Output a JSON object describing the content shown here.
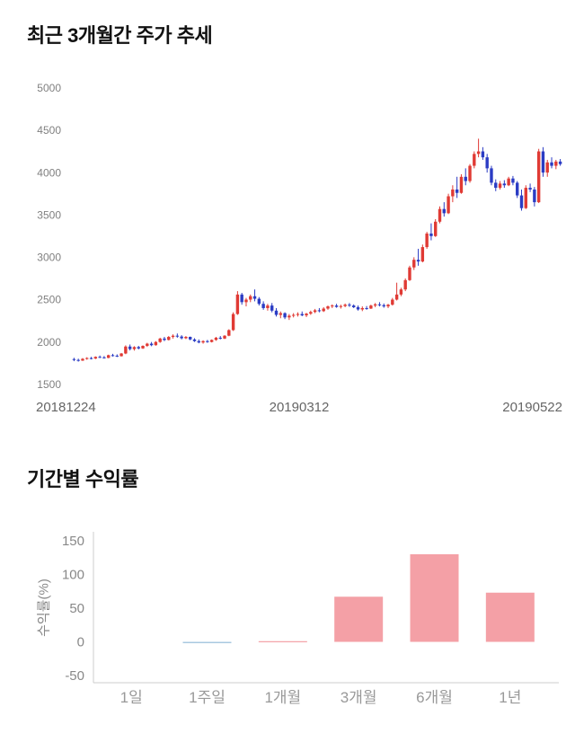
{
  "price_section": {
    "title": "최근 3개월간 주가 추세"
  },
  "returns_section": {
    "title": "기간별 수익률",
    "ylabel": "수익률(%)"
  },
  "chart_data": [
    {
      "type": "candlestick",
      "title": "최근 3개월간 주가 추세",
      "ylim": [
        1500,
        5000
      ],
      "yticks": [
        5000,
        4500,
        4000,
        3500,
        3000,
        2500,
        2000,
        1500
      ],
      "xticks": [
        "20181224",
        "20190312",
        "20190522"
      ],
      "up_color": "#e03a34",
      "down_color": "#2b3cc4",
      "ytick_text_color": "#808080",
      "xtick_text_color": "#666666",
      "candles": [
        [
          1800,
          1815,
          1775,
          1790
        ],
        [
          1790,
          1805,
          1770,
          1782
        ],
        [
          1782,
          1812,
          1778,
          1803
        ],
        [
          1803,
          1822,
          1792,
          1812
        ],
        [
          1812,
          1826,
          1796,
          1806
        ],
        [
          1806,
          1832,
          1800,
          1826
        ],
        [
          1826,
          1842,
          1812,
          1820
        ],
        [
          1820,
          1836,
          1806,
          1814
        ],
        [
          1814,
          1852,
          1810,
          1846
        ],
        [
          1846,
          1862,
          1830,
          1840
        ],
        [
          1840,
          1856,
          1824,
          1834
        ],
        [
          1834,
          1872,
          1830,
          1866
        ],
        [
          1866,
          1962,
          1858,
          1948
        ],
        [
          1948,
          1972,
          1902,
          1918
        ],
        [
          1918,
          1952,
          1900,
          1942
        ],
        [
          1942,
          1956,
          1914,
          1926
        ],
        [
          1926,
          1962,
          1920,
          1956
        ],
        [
          1956,
          1992,
          1944,
          1982
        ],
        [
          1982,
          2002,
          1952,
          1964
        ],
        [
          1964,
          2012,
          1958,
          2002
        ],
        [
          2002,
          2052,
          1992,
          2042
        ],
        [
          2042,
          2062,
          2012,
          2026
        ],
        [
          2026,
          2072,
          2020,
          2062
        ],
        [
          2062,
          2092,
          2042,
          2076
        ],
        [
          2076,
          2102,
          2052,
          2066
        ],
        [
          2066,
          2082,
          2032,
          2046
        ],
        [
          2046,
          2072,
          2036,
          2062
        ],
        [
          2062,
          2066,
          2022,
          2032
        ],
        [
          2032,
          2046,
          2002,
          2012
        ],
        [
          2012,
          2032,
          1986,
          1996
        ],
        [
          1996,
          2022,
          1982,
          2012
        ],
        [
          2012,
          2026,
          1992,
          2002
        ],
        [
          2002,
          2032,
          1996,
          2026
        ],
        [
          2026,
          2062,
          2016,
          2052
        ],
        [
          2052,
          2072,
          2032,
          2042
        ],
        [
          2042,
          2082,
          2036,
          2076
        ],
        [
          2076,
          2152,
          2070,
          2142
        ],
        [
          2142,
          2352,
          2132,
          2332
        ],
        [
          2332,
          2602,
          2322,
          2562
        ],
        [
          2562,
          2582,
          2442,
          2472
        ],
        [
          2472,
          2522,
          2422,
          2502
        ],
        [
          2502,
          2562,
          2472,
          2542
        ],
        [
          2542,
          2622,
          2482,
          2512
        ],
        [
          2512,
          2532,
          2432,
          2452
        ],
        [
          2452,
          2482,
          2382,
          2402
        ],
        [
          2402,
          2452,
          2372,
          2432
        ],
        [
          2432,
          2462,
          2352,
          2372
        ],
        [
          2372,
          2402,
          2302,
          2322
        ],
        [
          2322,
          2362,
          2282,
          2342
        ],
        [
          2342,
          2352,
          2272,
          2292
        ],
        [
          2292,
          2332,
          2262,
          2312
        ],
        [
          2312,
          2342,
          2292,
          2322
        ],
        [
          2322,
          2352,
          2302,
          2332
        ],
        [
          2332,
          2362,
          2306,
          2316
        ],
        [
          2316,
          2346,
          2296,
          2336
        ],
        [
          2336,
          2372,
          2322,
          2356
        ],
        [
          2356,
          2392,
          2342,
          2376
        ],
        [
          2376,
          2402,
          2352,
          2366
        ],
        [
          2366,
          2412,
          2356,
          2396
        ],
        [
          2396,
          2432,
          2382,
          2422
        ],
        [
          2422,
          2446,
          2402,
          2432
        ],
        [
          2432,
          2452,
          2406,
          2416
        ],
        [
          2416,
          2442,
          2396,
          2426
        ],
        [
          2426,
          2456,
          2412,
          2442
        ],
        [
          2442,
          2462,
          2416,
          2432
        ],
        [
          2432,
          2446,
          2402,
          2412
        ],
        [
          2412,
          2432,
          2372,
          2386
        ],
        [
          2386,
          2422,
          2366,
          2402
        ],
        [
          2402,
          2426,
          2382,
          2396
        ],
        [
          2396,
          2442,
          2392,
          2432
        ],
        [
          2432,
          2462,
          2412,
          2446
        ],
        [
          2446,
          2472,
          2422,
          2436
        ],
        [
          2436,
          2456,
          2406,
          2422
        ],
        [
          2422,
          2452,
          2402,
          2442
        ],
        [
          2442,
          2522,
          2432,
          2502
        ],
        [
          2502,
          2702,
          2492,
          2562
        ],
        [
          2562,
          2642,
          2542,
          2622
        ],
        [
          2622,
          2752,
          2602,
          2732
        ],
        [
          2732,
          2902,
          2722,
          2882
        ],
        [
          2882,
          3002,
          2852,
          2972
        ],
        [
          2972,
          3102,
          2902,
          2952
        ],
        [
          2952,
          3152,
          2942,
          3122
        ],
        [
          3122,
          3302,
          3102,
          3282
        ],
        [
          3282,
          3402,
          3202,
          3252
        ],
        [
          3252,
          3452,
          3242,
          3422
        ],
        [
          3422,
          3602,
          3402,
          3572
        ],
        [
          3572,
          3652,
          3482,
          3522
        ],
        [
          3522,
          3752,
          3512,
          3722
        ],
        [
          3722,
          3852,
          3652,
          3802
        ],
        [
          3802,
          3952,
          3702,
          3762
        ],
        [
          3762,
          3982,
          3752,
          3952
        ],
        [
          3952,
          4052,
          3852,
          3902
        ],
        [
          3902,
          4102,
          3882,
          4082
        ],
        [
          4082,
          4252,
          4052,
          4222
        ],
        [
          4222,
          4402,
          4182,
          4252
        ],
        [
          4252,
          4302,
          4152,
          4182
        ],
        [
          4182,
          4222,
          4002,
          4052
        ],
        [
          4052,
          4082,
          3852,
          3882
        ],
        [
          3882,
          3922,
          3782,
          3822
        ],
        [
          3822,
          3902,
          3802,
          3872
        ],
        [
          3872,
          3912,
          3822,
          3852
        ],
        [
          3852,
          3952,
          3842,
          3932
        ],
        [
          3932,
          3962,
          3852,
          3882
        ],
        [
          3882,
          3902,
          3702,
          3732
        ],
        [
          3732,
          3802,
          3552,
          3582
        ],
        [
          3582,
          3852,
          3572,
          3822
        ],
        [
          3822,
          3872,
          3772,
          3802
        ],
        [
          3802,
          3832,
          3602,
          3652
        ],
        [
          3652,
          4282,
          3642,
          4252
        ],
        [
          4252,
          4302,
          3952,
          4002
        ],
        [
          4002,
          4152,
          3952,
          4122
        ],
        [
          4122,
          4182,
          4052,
          4082
        ],
        [
          4082,
          4152,
          4042,
          4132
        ],
        [
          4132,
          4162,
          4082,
          4102
        ]
      ]
    },
    {
      "type": "bar",
      "title": "기간별 수익률",
      "ylabel": "수익률(%)",
      "categories": [
        "1일",
        "1주일",
        "1개월",
        "3개월",
        "6개월",
        "1년"
      ],
      "values": [
        0,
        -2,
        1,
        67,
        130,
        73
      ],
      "ylim": [
        -50,
        150
      ],
      "yticks": [
        150,
        100,
        50,
        0,
        -50
      ],
      "positive_color": "#f4a0a6",
      "negative_color": "#a8c8e0",
      "axis_line_color": "#cccccc",
      "ytick_text_color": "#888888",
      "category_text_color": "#999999"
    }
  ]
}
